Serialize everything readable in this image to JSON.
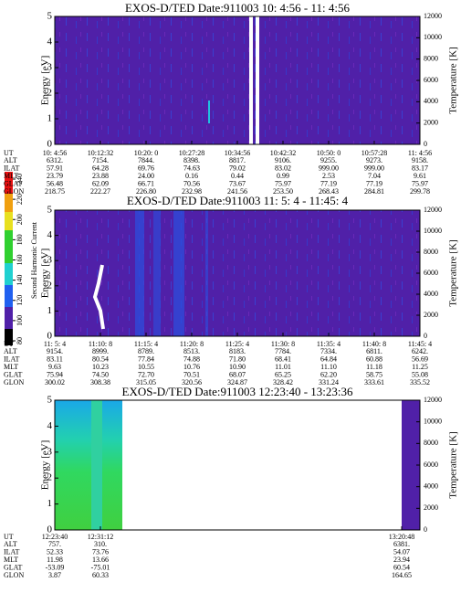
{
  "colorbar": {
    "label": "Second Harmonic Current",
    "ticks": [
      80,
      100,
      120,
      140,
      160,
      180,
      200,
      220,
      240
    ]
  },
  "panels": [
    {
      "title": "EXOS-D/TED  Date:911003  10: 4:56 - 11: 4:56",
      "ylabel": "Energy [eV]",
      "y2label": "Temperature [K]",
      "ylim": [
        0,
        5
      ],
      "yticks": [
        0,
        1,
        2,
        3,
        4,
        5
      ],
      "y2lim": [
        0,
        12000
      ],
      "y2ticks": [
        0,
        2000,
        4000,
        6000,
        8000,
        10000,
        12000
      ],
      "rows": [
        [
          "UT",
          "10: 4:56",
          "10:12:32",
          "10:20: 0",
          "10:27:28",
          "10:34:56",
          "10:42:32",
          "10:50: 0",
          "10:57:28",
          "11: 4:56"
        ],
        [
          "ALT",
          "6312.",
          "7154.",
          "7844.",
          "8398.",
          "8817.",
          "9106.",
          "9255.",
          "9273.",
          "9158."
        ],
        [
          "ILAT",
          "57.91",
          "64.28",
          "69.76",
          "74.63",
          "79.02",
          "83.02",
          "999.00",
          "999.00",
          "83.17"
        ],
        [
          "MLT",
          "23.79",
          "23.88",
          "24.00",
          "0.16",
          "0.44",
          "0.99",
          "2.53",
          "7.04",
          "9.61"
        ],
        [
          "GLAT",
          "56.48",
          "62.09",
          "66.71",
          "70.56",
          "73.67",
          "75.97",
          "77.19",
          "77.19",
          "75.97"
        ],
        [
          "GLON",
          "218.75",
          "222.27",
          "226.80",
          "232.98",
          "241.56",
          "253.50",
          "268.43",
          "284.81",
          "299.78"
        ]
      ]
    },
    {
      "title": "EXOS-D/TED  Date:911003  11: 5: 4 - 11:45: 4",
      "ylabel": "Energy [eV]",
      "y2label": "Temperature [K]",
      "ylim": [
        0,
        5
      ],
      "yticks": [
        0,
        1,
        2,
        3,
        4,
        5
      ],
      "y2lim": [
        0,
        12000
      ],
      "y2ticks": [
        0,
        2000,
        4000,
        6000,
        8000,
        10000,
        12000
      ],
      "rows": [
        [
          "UT",
          "11: 5: 4",
          "11:10: 8",
          "11:15: 4",
          "11:20: 8",
          "11:25: 4",
          "11:30: 8",
          "11:35: 4",
          "11:40: 8",
          "11:45: 4"
        ],
        [
          "ALT",
          "9154.",
          "8999.",
          "8789.",
          "8513.",
          "8183.",
          "7784.",
          "7334.",
          "6811.",
          "6242."
        ],
        [
          "ILAT",
          "83.11",
          "80.54",
          "77.84",
          "74.88",
          "71.80",
          "68.41",
          "64.84",
          "60.88",
          "56.69"
        ],
        [
          "MLT",
          "9.63",
          "10.23",
          "10.55",
          "10.76",
          "10.90",
          "11.01",
          "11.10",
          "11.18",
          "11.25"
        ],
        [
          "GLAT",
          "75.94",
          "74.50",
          "72.70",
          "70.51",
          "68.07",
          "65.25",
          "62.20",
          "58.75",
          "55.08"
        ],
        [
          "GLON",
          "300.02",
          "308.38",
          "315.05",
          "320.56",
          "324.87",
          "328.42",
          "331.24",
          "333.61",
          "335.52"
        ]
      ]
    },
    {
      "title": "EXOS-D/TED  Date:911003  12:23:40 - 13:23:36",
      "ylabel": "Energy [eV]",
      "y2label": "Temperature [K]",
      "ylim": [
        0,
        5
      ],
      "yticks": [
        0,
        1,
        2,
        3,
        4,
        5
      ],
      "y2lim": [
        0,
        12000
      ],
      "y2ticks": [
        0,
        2000,
        4000,
        6000,
        8000,
        10000,
        12000
      ],
      "rows": [
        [
          "UT",
          "12:23:40",
          "12:31:12",
          "13:20:48"
        ],
        [
          "ALT",
          "757.",
          "310.",
          "6381."
        ],
        [
          "ILAT",
          "52.33",
          "73.76",
          "54.07"
        ],
        [
          "MLT",
          "11.98",
          "13.66",
          "23.94"
        ],
        [
          "GLAT",
          "-53.09",
          "-75.01",
          "60.54"
        ],
        [
          "GLON",
          "3.87",
          "60.33",
          "164.65"
        ]
      ]
    }
  ]
}
